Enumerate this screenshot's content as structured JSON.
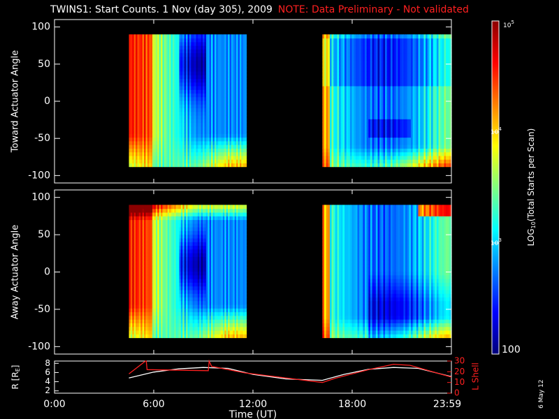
{
  "header": {
    "title": "TWINS1: Start Counts.  1 Nov (day 305), 2009",
    "note": "NOTE: Data Preliminary - Not validated"
  },
  "date_stamp": "6 May 12",
  "colors": {
    "note": "#ff2020",
    "l_shell": "#ff2020",
    "r_line": "#ffffff",
    "colormap": [
      "#00007a",
      "#0000ff",
      "#0080ff",
      "#00ffff",
      "#80ff80",
      "#ffff00",
      "#ff8000",
      "#ff0000",
      "#8b0000"
    ]
  },
  "chart_data": [
    {
      "type": "heatmap",
      "name": "toward-panel",
      "ylabel": "Toward Actuator Angle",
      "ylim": [
        -110,
        110
      ],
      "yticks": [
        "100",
        "50",
        "0",
        "-50",
        "-100"
      ],
      "angle_range": [
        -88,
        90
      ],
      "data_intervals_hours": [
        [
          4.5,
          11.6
        ],
        [
          16.2,
          24.0
        ]
      ]
    },
    {
      "type": "heatmap",
      "name": "away-panel",
      "ylabel": "Away Actuator Angle",
      "ylim": [
        -110,
        110
      ],
      "yticks": [
        "100",
        "50",
        "0",
        "-50",
        "-100"
      ],
      "angle_range": [
        -88,
        90
      ],
      "data_intervals_hours": [
        [
          4.5,
          11.6
        ],
        [
          16.2,
          24.0
        ]
      ]
    },
    {
      "type": "line",
      "name": "ephemeris-panel",
      "xlabel": "Time (UT)",
      "xlim": [
        0,
        24
      ],
      "xticks": [
        "0:00",
        "6:00",
        "12:00",
        "18:00",
        "23:59"
      ],
      "ylabel_left": "R [R",
      "ylabel_left_sub": "E",
      "ylabel_left_close": "]",
      "ylim_left": [
        1.5,
        8.5
      ],
      "yticks_left": [
        "8",
        "6",
        "4",
        "2"
      ],
      "ylabel_right": "L Shell",
      "ylim_right": [
        0,
        30
      ],
      "yticks_right": [
        "30",
        "20",
        "10",
        "0"
      ],
      "series": [
        {
          "name": "R",
          "x": [
            4.5,
            6,
            7.5,
            9,
            10.5,
            12,
            14,
            16.2,
            17.5,
            19,
            20.5,
            22,
            24
          ],
          "values": [
            4.8,
            6.1,
            6.8,
            7.1,
            6.9,
            5.6,
            4.6,
            4.3,
            5.6,
            6.7,
            7.1,
            6.9,
            5.1
          ]
        },
        {
          "name": "L Shell",
          "x": [
            4.5,
            5.5,
            5.55,
            5.6,
            9.3,
            9.35,
            9.5,
            11.5,
            16.2,
            17,
            19,
            20.5,
            21.5,
            24
          ],
          "values": [
            18,
            30,
            30,
            22,
            21,
            30,
            25,
            19,
            10,
            14,
            22,
            27,
            26,
            15
          ]
        }
      ]
    },
    {
      "type": "colorbar",
      "name": "colorbar",
      "label": "LOG",
      "label_sub": "10",
      "label_rest": "(Total Starts per Scan)",
      "scale": "log",
      "range": [
        100,
        100000
      ],
      "tick_min": "100",
      "tick_labels": [
        {
          "value": 1000,
          "base": "10",
          "exp": "3"
        },
        {
          "value": 10000,
          "base": "10",
          "exp": "4"
        },
        {
          "value": 100000,
          "base": "10",
          "exp": "5"
        }
      ]
    }
  ]
}
